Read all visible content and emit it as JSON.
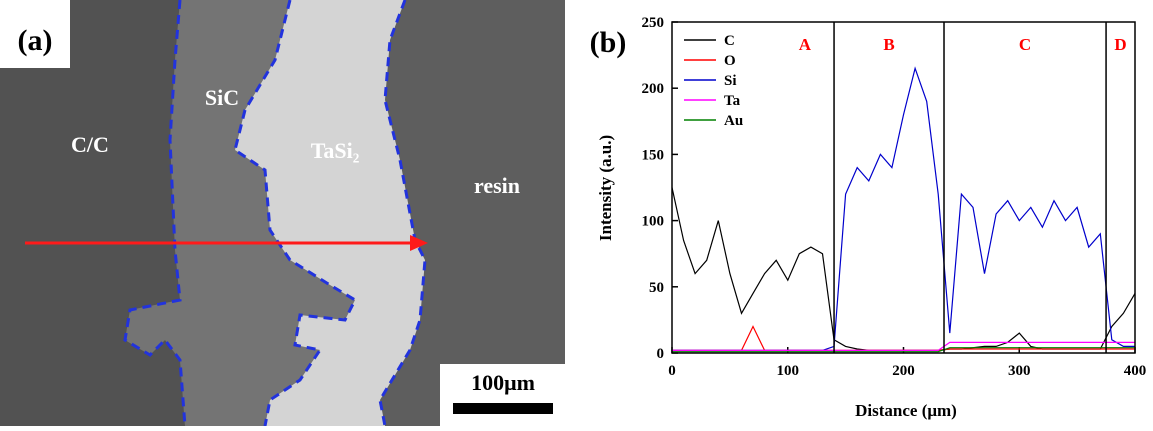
{
  "image": {
    "panel_label": "(a)",
    "regions": [
      "C/C",
      "SiC",
      "TaSi₂",
      "resin"
    ],
    "scale_bar": "100μm"
  },
  "chart_data": {
    "type": "line",
    "panel_label": "(b)",
    "x_label": "Distance (μm)",
    "y_label": "Intensity (a.u.)",
    "xlim": [
      0,
      400
    ],
    "xticks": [
      0,
      100,
      200,
      300,
      400
    ],
    "ylim": [
      0,
      250
    ],
    "yticks": [
      0,
      50,
      100,
      150,
      200,
      250
    ],
    "x": [
      0,
      10,
      20,
      30,
      40,
      50,
      60,
      70,
      80,
      90,
      100,
      110,
      120,
      130,
      140,
      150,
      160,
      170,
      180,
      190,
      200,
      210,
      220,
      230,
      240,
      250,
      260,
      270,
      280,
      290,
      300,
      310,
      320,
      330,
      340,
      350,
      360,
      370,
      380,
      390,
      400
    ],
    "series": [
      {
        "name": "C",
        "color": "#000000",
        "values": [
          125,
          85,
          60,
          70,
          100,
          60,
          30,
          45,
          60,
          70,
          55,
          75,
          80,
          75,
          10,
          5,
          3,
          2,
          2,
          2,
          2,
          2,
          2,
          2,
          3,
          3,
          4,
          5,
          5,
          8,
          15,
          5,
          3,
          3,
          3,
          3,
          3,
          3,
          20,
          30,
          45
        ]
      },
      {
        "name": "O",
        "color": "#ff0000",
        "values": [
          2,
          2,
          2,
          2,
          2,
          2,
          2,
          20,
          2,
          2,
          2,
          2,
          2,
          2,
          2,
          2,
          2,
          2,
          2,
          2,
          2,
          2,
          2,
          2,
          3,
          3,
          3,
          3,
          3,
          3,
          3,
          3,
          3,
          3,
          3,
          3,
          3,
          3,
          3,
          3,
          3
        ]
      },
      {
        "name": "Si",
        "color": "#0000cc",
        "values": [
          2,
          2,
          2,
          2,
          2,
          2,
          2,
          2,
          2,
          2,
          2,
          2,
          2,
          2,
          5,
          120,
          140,
          130,
          150,
          140,
          180,
          215,
          190,
          120,
          15,
          120,
          110,
          60,
          105,
          115,
          100,
          110,
          95,
          115,
          100,
          110,
          80,
          90,
          10,
          5,
          5
        ]
      },
      {
        "name": "Ta",
        "color": "#ff00ff",
        "values": [
          2,
          2,
          2,
          2,
          2,
          2,
          2,
          2,
          2,
          2,
          2,
          2,
          2,
          2,
          2,
          2,
          2,
          2,
          2,
          2,
          2,
          2,
          2,
          2,
          8,
          8,
          8,
          8,
          8,
          8,
          8,
          8,
          8,
          8,
          8,
          8,
          8,
          8,
          8,
          8,
          8
        ]
      },
      {
        "name": "Au",
        "color": "#008000",
        "values": [
          1,
          1,
          1,
          1,
          1,
          1,
          1,
          1,
          1,
          1,
          1,
          1,
          1,
          1,
          1,
          1,
          1,
          1,
          1,
          1,
          1,
          1,
          1,
          1,
          4,
          4,
          4,
          4,
          4,
          4,
          4,
          4,
          4,
          4,
          4,
          4,
          4,
          4,
          4,
          4,
          4
        ]
      }
    ],
    "region_boundaries": [
      140,
      235,
      375
    ],
    "region_labels": [
      "A",
      "B",
      "C",
      "D"
    ],
    "legend": "upper left"
  }
}
